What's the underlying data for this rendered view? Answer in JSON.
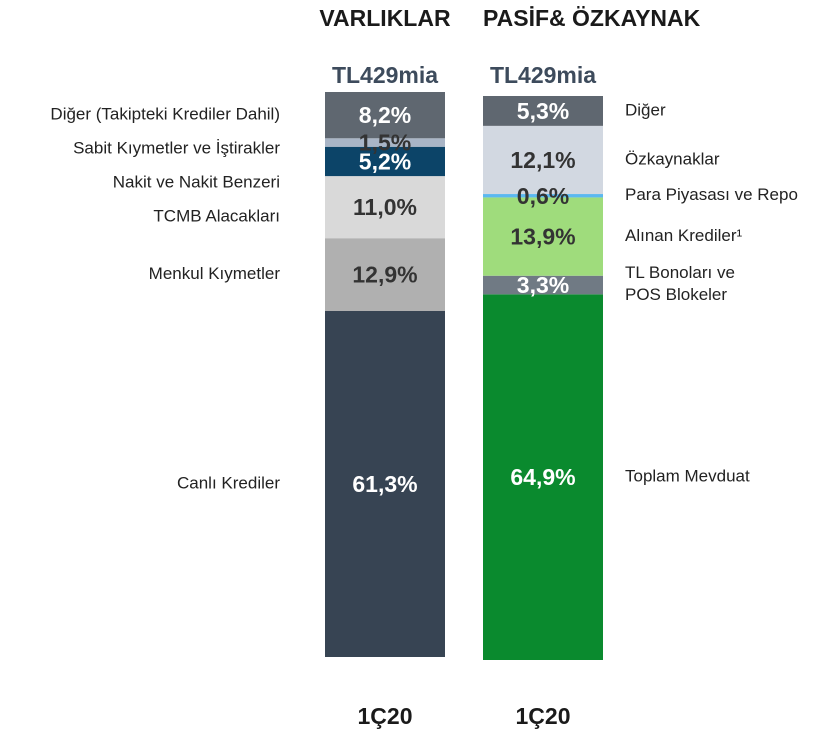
{
  "chart_data": [
    {
      "type": "bar",
      "stacked": true,
      "title": "VARLIKLAR",
      "subtitle": "TL429mia",
      "categories": [
        "1Ç20"
      ],
      "legend": "left",
      "series": [
        {
          "name": "Canlı Krediler",
          "color": "#374453",
          "values": [
            61.3
          ],
          "value_labels": [
            "61,3%"
          ]
        },
        {
          "name": "Menkul Kıymetler",
          "color": "#b0b0b0",
          "values": [
            12.9
          ],
          "value_labels": [
            "12,9%"
          ]
        },
        {
          "name": "TCMB Alacakları",
          "color": "#d9d9d9",
          "values": [
            11.0
          ],
          "value_labels": [
            "11,0%"
          ]
        },
        {
          "name": "Nakit ve Nakit Benzeri",
          "color": "#0c4468",
          "values": [
            5.2
          ],
          "value_labels": [
            "5,2%"
          ]
        },
        {
          "name": "Sabit Kıymetler ve İştirakler",
          "color": "#a9b5c6",
          "values": [
            1.5
          ],
          "value_labels": [
            "1,5%"
          ]
        },
        {
          "name": "Diğer (Takipteki Krediler Dahil)",
          "color": "#5f6770",
          "values": [
            8.2
          ],
          "value_labels": [
            "8,2%"
          ]
        }
      ]
    },
    {
      "type": "bar",
      "stacked": true,
      "title": "PASİF& ÖZKAYNAK",
      "subtitle": "TL429mia",
      "categories": [
        "1Ç20"
      ],
      "legend": "right",
      "series": [
        {
          "name": "Toplam Mevduat",
          "color": "#0a8a2e",
          "values": [
            64.9
          ],
          "value_labels": [
            "64,9%"
          ]
        },
        {
          "name": "TL Bonoları ve\nPOS Blokeler",
          "color": "#707a84",
          "values": [
            3.3
          ],
          "value_labels": [
            "3,3%"
          ]
        },
        {
          "name": "Alınan Krediler¹",
          "color": "#9fdc7c",
          "values": [
            13.9
          ],
          "value_labels": [
            "13,9%"
          ]
        },
        {
          "name": "Para Piyasası ve Repo",
          "color": "#5bb8f0",
          "values": [
            0.6
          ],
          "value_labels": [
            "0,6%"
          ]
        },
        {
          "name": "Özkaynaklar",
          "color": "#d2d8e1",
          "values": [
            12.1
          ],
          "value_labels": [
            "12,1%"
          ]
        },
        {
          "name": "Diğer",
          "color": "#5f6770",
          "values": [
            5.3
          ],
          "value_labels": [
            "5,3%"
          ]
        }
      ]
    }
  ]
}
